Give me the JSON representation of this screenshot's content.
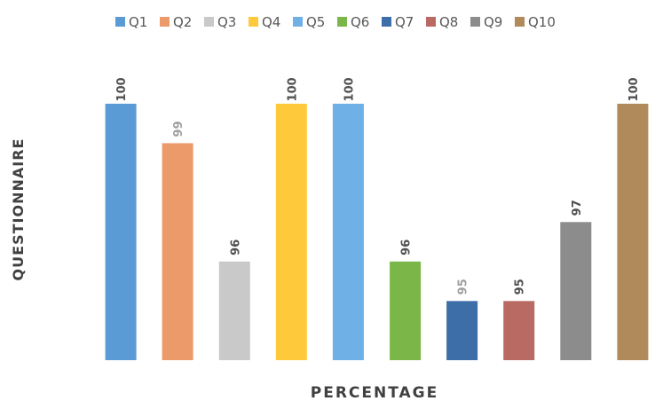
{
  "chart_data": {
    "type": "bar",
    "categories": [
      "Q1",
      "Q2",
      "Q3",
      "Q4",
      "Q5",
      "Q6",
      "Q7",
      "Q8",
      "Q9",
      "Q10"
    ],
    "series": [
      {
        "values": [
          100,
          99,
          96,
          100,
          100,
          96,
          95,
          95,
          97,
          100
        ]
      }
    ],
    "data_labels": [
      "100",
      "99",
      "96",
      "100",
      "100",
      "96",
      "95",
      "95",
      "97",
      "100"
    ],
    "colors": [
      "#5B9BD5",
      "#ED9A6A",
      "#C9C9C9",
      "#FFC93C",
      "#6FB0E6",
      "#7AB648",
      "#3E6EA8",
      "#B96B63",
      "#8C8C8C",
      "#B08A5A"
    ],
    "label_colors": [
      "#505050",
      "#A0A0A0",
      "#505050",
      "#505050",
      "#505050",
      "#505050",
      "#A0A0A0",
      "#505050",
      "#505050",
      "#505050"
    ],
    "legend": [
      "Q1",
      "Q2",
      "Q3",
      "Q4",
      "Q5",
      "Q6",
      "Q7",
      "Q8",
      "Q9",
      "Q10"
    ],
    "legend_position": "top",
    "xlabel": "PERCENTAGE",
    "ylabel": "QUESTIONNAIRE",
    "ylim": [
      93.5,
      100.2
    ],
    "grid": false
  }
}
